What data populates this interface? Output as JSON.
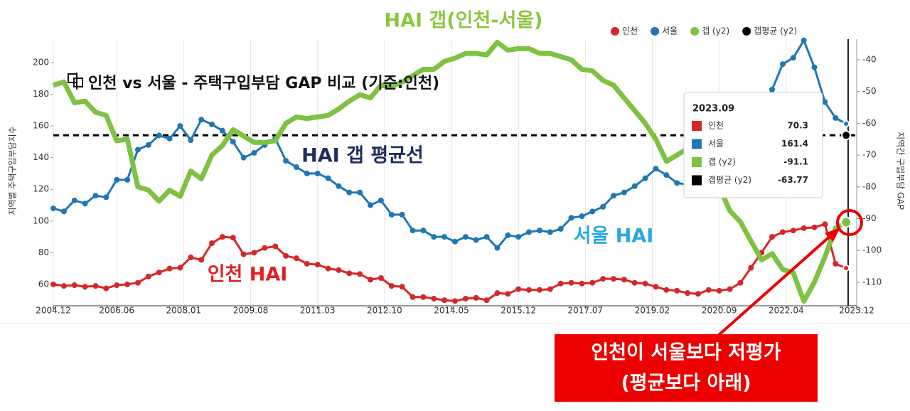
{
  "chart_data": {
    "type": "line",
    "title": "인천 vs 서울 - 주택구입부담 GAP 비교 (기준:인천)",
    "y_label": "지역별 주택구입부담지수",
    "y2_label": "지역간 구입부담 GAP",
    "x": [
      2004.917,
      2005.167,
      2005.417,
      2005.667,
      2005.917,
      2006.167,
      2006.417,
      2006.667,
      2006.917,
      2007.167,
      2007.417,
      2007.667,
      2007.917,
      2008.167,
      2008.417,
      2008.667,
      2008.917,
      2009.167,
      2009.417,
      2009.667,
      2009.917,
      2010.167,
      2010.417,
      2010.667,
      2010.917,
      2011.167,
      2011.417,
      2011.667,
      2011.917,
      2012.167,
      2012.417,
      2012.667,
      2012.917,
      2013.167,
      2013.417,
      2013.667,
      2013.917,
      2014.167,
      2014.417,
      2014.667,
      2014.917,
      2015.167,
      2015.417,
      2015.667,
      2015.917,
      2016.167,
      2016.417,
      2016.667,
      2016.917,
      2017.167,
      2017.417,
      2017.667,
      2017.917,
      2018.167,
      2018.417,
      2018.667,
      2018.917,
      2019.167,
      2019.417,
      2019.667,
      2019.917,
      2020.167,
      2020.417,
      2020.667,
      2020.917,
      2021.167,
      2021.417,
      2021.667,
      2021.917,
      2022.167,
      2022.417,
      2022.667,
      2022.917,
      2023.167,
      2023.417,
      2023.667
    ],
    "series": [
      {
        "name": "인천",
        "color": "#d62728",
        "markers": true,
        "values": [
          60,
          59,
          59.5,
          58.5,
          59,
          57.5,
          59.5,
          60,
          61,
          65,
          67.5,
          70,
          70.5,
          77,
          75.5,
          86,
          90,
          89.5,
          79,
          80,
          83,
          84,
          78,
          76.5,
          73,
          72.5,
          70,
          69,
          67,
          66.5,
          63,
          64,
          59,
          58.5,
          52,
          52,
          51,
          50,
          49.5,
          51,
          51.5,
          50,
          54.5,
          54,
          57,
          56.5,
          56.5,
          57,
          60.5,
          61,
          60.5,
          61,
          63.5,
          63.5,
          63,
          61,
          60.5,
          58.5,
          56.5,
          56,
          54.5,
          54,
          56.5,
          56,
          57,
          61,
          70.5,
          80,
          90,
          93,
          94,
          95.5,
          96,
          98,
          73,
          70.3
        ]
      },
      {
        "name": "서울",
        "color": "#1f77b4",
        "markers": true,
        "values": [
          108,
          106,
          113,
          111,
          116,
          115,
          126,
          126,
          145,
          148,
          154,
          152,
          160,
          151,
          164,
          161,
          157,
          150,
          140,
          143,
          148,
          152,
          138,
          134,
          130,
          130,
          127,
          122,
          118,
          118,
          110,
          113,
          104,
          104,
          94,
          94,
          90,
          90,
          87,
          90,
          88,
          90,
          83,
          91,
          90,
          93,
          94,
          93,
          95,
          102,
          103,
          106,
          109,
          116,
          118,
          122,
          127,
          133,
          129,
          124,
          123,
          124,
          128,
          135,
          142,
          150,
          163,
          172,
          183,
          199,
          203,
          214,
          197,
          175,
          165,
          161.4
        ]
      },
      {
        "name": "갭 (y2)",
        "color": "#7dc242",
        "axis": "y2",
        "markers": false,
        "values": [
          -48,
          -47,
          -53.5,
          -53,
          -56.5,
          -57.5,
          -65.5,
          -65,
          -80,
          -81,
          -84.5,
          -81,
          -83,
          -75,
          -77.5,
          -70,
          -67,
          -62,
          -64,
          -66,
          -66,
          -65.5,
          -60,
          -58,
          -58.5,
          -58,
          -57.5,
          -55.5,
          -53,
          -51,
          -52,
          -48,
          -48.5,
          -47,
          -45,
          -43,
          -43,
          -40.5,
          -39.5,
          -38,
          -38,
          -38.5,
          -34.5,
          -37,
          -36.5,
          -36.5,
          -38,
          -38,
          -39,
          -40,
          -43,
          -43.5,
          -46.5,
          -48,
          -52,
          -56,
          -60,
          -65,
          -72,
          -70,
          -68,
          -67.5,
          -71,
          -80,
          -87.5,
          -91,
          -97,
          -103,
          -101,
          -106,
          -107,
          -116,
          -110,
          -102,
          -93,
          -91.1
        ]
      }
    ],
    "y2_average": {
      "name": "갭평균 (y2)",
      "color": "#000000",
      "value": -63.77
    },
    "xlim": [
      2004.917,
      2023.917
    ],
    "xticks": [
      {
        "value": 2004.917,
        "label": "2004.12"
      },
      {
        "value": 2006.417,
        "label": "2006.06"
      },
      {
        "value": 2008.0,
        "label": "2008.01"
      },
      {
        "value": 2009.583,
        "label": "2009.08"
      },
      {
        "value": 2011.167,
        "label": "2011.03"
      },
      {
        "value": 2012.75,
        "label": "2012.10"
      },
      {
        "value": 2014.333,
        "label": "2014.05"
      },
      {
        "value": 2015.917,
        "label": "2015.12"
      },
      {
        "value": 2017.5,
        "label": "2017.07"
      },
      {
        "value": 2019.083,
        "label": "2019.02"
      },
      {
        "value": 2020.667,
        "label": "2020.09"
      },
      {
        "value": 2022.25,
        "label": "2022.04"
      },
      {
        "value": 2023.917,
        "label": "2023.12"
      }
    ],
    "ylim": [
      46.5,
      214.8
    ],
    "yticks": [
      60,
      80,
      100,
      120,
      140,
      160,
      180,
      200
    ],
    "y2lim": [
      -117.4,
      -33.5
    ],
    "y2ticks": [
      -110,
      -100,
      -90,
      -80,
      -70,
      -60,
      -50,
      -40
    ],
    "grid": true,
    "legend": "top-right",
    "tooltip_title": "2023.09",
    "annotations": [
      {
        "text": "HAI 갭(인천-서울)",
        "color": "#8cc63f"
      },
      {
        "text": "HAI 갭 평균선",
        "color": "#1f2d5c"
      },
      {
        "text": "서울 HAI",
        "color": "#29a8e0"
      },
      {
        "text": "인천 HAI",
        "color": "#e02020"
      },
      {
        "text": "인천이 서울보다 저평가",
        "color": "#ffffff"
      },
      {
        "text": "(평균보다 아래)",
        "color": "#ffffff"
      }
    ]
  }
}
